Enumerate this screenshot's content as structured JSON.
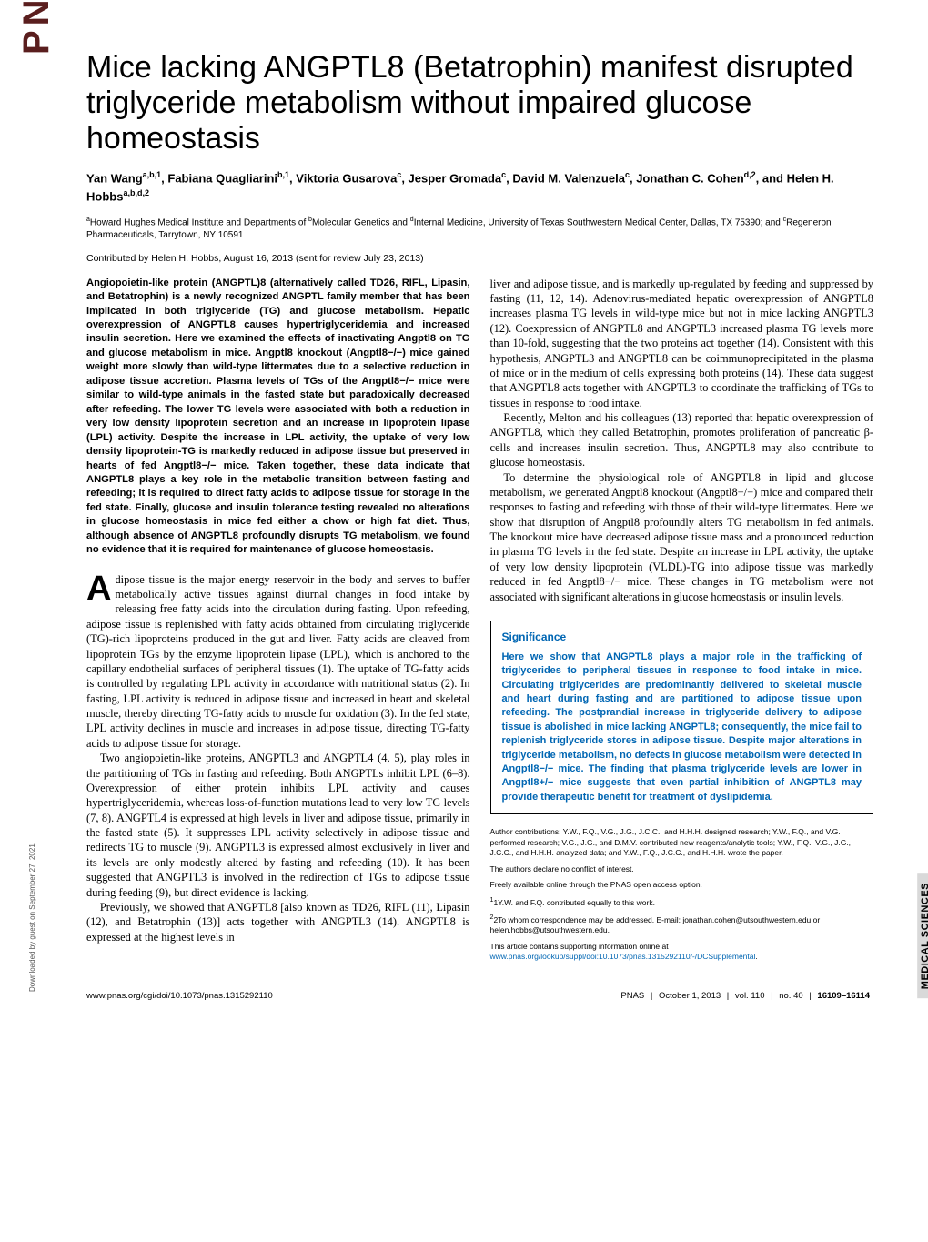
{
  "journal_logo": "PNAS  PNAS  PNAS",
  "side_label": "MEDICAL SCIENCES",
  "download_note": "Downloaded by guest on September 27, 2021",
  "title": "Mice lacking ANGPTL8 (Betatrophin) manifest disrupted triglyceride metabolism without impaired glucose homeostasis",
  "authors_html": "Yan Wang<sup>a,b,1</sup>, Fabiana Quagliarini<sup>b,1</sup>, Viktoria Gusarova<sup>c</sup>, Jesper Gromada<sup>c</sup>, David M. Valenzuela<sup>c</sup>, Jonathan C. Cohen<sup>d,2</sup>, and Helen H. Hobbs<sup>a,b,d,2</sup>",
  "affiliations_html": "<sup>a</sup>Howard Hughes Medical Institute and Departments of <sup>b</sup>Molecular Genetics and <sup>d</sup>Internal Medicine, University of Texas Southwestern Medical Center, Dallas, TX 75390; and <sup>c</sup>Regeneron Pharmaceuticals, Tarrytown, NY 10591",
  "contributed": "Contributed by Helen H. Hobbs, August 16, 2013 (sent for review July 23, 2013)",
  "abstract": "Angiopoietin-like protein (ANGPTL)8 (alternatively called TD26, RIFL, Lipasin, and Betatrophin) is a newly recognized ANGPTL family member that has been implicated in both triglyceride (TG) and glucose metabolism. Hepatic overexpression of ANGPTL8 causes hypertriglyceridemia and increased insulin secretion. Here we examined the effects of inactivating Angptl8 on TG and glucose metabolism in mice. Angptl8 knockout (Angptl8−/−) mice gained weight more slowly than wild-type littermates due to a selective reduction in adipose tissue accretion. Plasma levels of TGs of the Angptl8−/− mice were similar to wild-type animals in the fasted state but paradoxically decreased after refeeding. The lower TG levels were associated with both a reduction in very low density lipoprotein secretion and an increase in lipoprotein lipase (LPL) activity. Despite the increase in LPL activity, the uptake of very low density lipoprotein-TG is markedly reduced in adipose tissue but preserved in hearts of fed Angptl8−/− mice. Taken together, these data indicate that ANGPTL8 plays a key role in the metabolic transition between fasting and refeeding; it is required to direct fatty acids to adipose tissue for storage in the fed state. Finally, glucose and insulin tolerance testing revealed no alterations in glucose homeostasis in mice fed either a chow or high fat diet. Thus, although absence of ANGPTL8 profoundly disrupts TG metabolism, we found no evidence that it is required for maintenance of glucose homeostasis.",
  "body_left_p1": "dipose tissue is the major energy reservoir in the body and serves to buffer metabolically active tissues against diurnal changes in food intake by releasing free fatty acids into the circulation during fasting. Upon refeeding, adipose tissue is replenished with fatty acids obtained from circulating triglyceride (TG)-rich lipoproteins produced in the gut and liver. Fatty acids are cleaved from lipoprotein TGs by the enzyme lipoprotein lipase (LPL), which is anchored to the capillary endothelial surfaces of peripheral tissues (1). The uptake of TG-fatty acids is controlled by regulating LPL activity in accordance with nutritional status (2). In fasting, LPL activity is reduced in adipose tissue and increased in heart and skeletal muscle, thereby directing TG-fatty acids to muscle for oxidation (3). In the fed state, LPL activity declines in muscle and increases in adipose tissue, directing TG-fatty acids to adipose tissue for storage.",
  "body_left_p2": "Two angiopoietin-like proteins, ANGPTL3 and ANGPTL4 (4, 5), play roles in the partitioning of TGs in fasting and refeeding. Both ANGPTLs inhibit LPL (6–8). Overexpression of either protein inhibits LPL activity and causes hypertriglyceridemia, whereas loss-of-function mutations lead to very low TG levels (7, 8). ANGPTL4 is expressed at high levels in liver and adipose tissue, primarily in the fasted state (5). It suppresses LPL activity selectively in adipose tissue and redirects TG to muscle (9). ANGPTL3 is expressed almost exclusively in liver and its levels are only modestly altered by fasting and refeeding (10). It has been suggested that ANGPTL3 is involved in the redirection of TGs to adipose tissue during feeding (9), but direct evidence is lacking.",
  "body_left_p3": "Previously, we showed that ANGPTL8 [also known as TD26, RIFL (11), Lipasin (12), and Betatrophin (13)] acts together with ANGPTL3 (14). ANGPTL8 is expressed at the highest levels in",
  "body_right_p1": "liver and adipose tissue, and is markedly up-regulated by feeding and suppressed by fasting (11, 12, 14). Adenovirus-mediated hepatic overexpression of ANGPTL8 increases plasma TG levels in wild-type mice but not in mice lacking ANGPTL3 (12). Coexpression of ANGPTL8 and ANGPTL3 increased plasma TG levels more than 10-fold, suggesting that the two proteins act together (14). Consistent with this hypothesis, ANGPTL3 and ANGPTL8 can be coimmunoprecipitated in the plasma of mice or in the medium of cells expressing both proteins (14). These data suggest that ANGPTL8 acts together with ANGPTL3 to coordinate the trafficking of TGs to tissues in response to food intake.",
  "body_right_p2": "Recently, Melton and his colleagues (13) reported that hepatic overexpression of ANGPTL8, which they called Betatrophin, promotes proliferation of pancreatic β-cells and increases insulin secretion. Thus, ANGPTL8 may also contribute to glucose homeostasis.",
  "body_right_p3": "To determine the physiological role of ANGPTL8 in lipid and glucose metabolism, we generated Angptl8 knockout (Angptl8−/−) mice and compared their responses to fasting and refeeding with those of their wild-type littermates. Here we show that disruption of Angptl8 profoundly alters TG metabolism in fed animals. The knockout mice have decreased adipose tissue mass and a pronounced reduction in plasma TG levels in the fed state. Despite an increase in LPL activity, the uptake of very low density lipoprotein (VLDL)-TG into adipose tissue was markedly reduced in fed Angptl8−/− mice. These changes in TG metabolism were not associated with significant alterations in glucose homeostasis or insulin levels.",
  "significance": {
    "heading": "Significance",
    "body": "Here we show that ANGPTL8 plays a major role in the trafficking of triglycerides to peripheral tissues in response to food intake in mice. Circulating triglycerides are predominantly delivered to skeletal muscle and heart during fasting and are partitioned to adipose tissue upon refeeding. The postprandial increase in triglyceride delivery to adipose tissue is abolished in mice lacking ANGPTL8; consequently, the mice fail to replenish triglyceride stores in adipose tissue. Despite major alterations in triglyceride metabolism, no defects in glucose metabolism were detected in Angptl8−/− mice. The finding that plasma triglyceride levels are lower in Angptl8+/− mice suggests that even partial inhibition of ANGPTL8 may provide therapeutic benefit for treatment of dyslipidemia."
  },
  "meta": {
    "contributions": "Author contributions: Y.W., F.Q., V.G., J.G., J.C.C., and H.H.H. designed research; Y.W., F.Q., and V.G. performed research; V.G., J.G., and D.M.V. contributed new reagents/analytic tools; Y.W., F.Q., V.G., J.G., J.C.C., and H.H.H. analyzed data; and Y.W., F.Q., J.C.C., and H.H.H. wrote the paper.",
    "conflict": "The authors declare no conflict of interest.",
    "openaccess": "Freely available online through the PNAS open access option.",
    "equal": "1Y.W. and F.Q. contributed equally to this work.",
    "correspondence": "2To whom correspondence may be addressed. E-mail: jonathan.cohen@utsouthwestern.edu or helen.hobbs@utsouthwestern.edu.",
    "supporting_pre": "This article contains supporting information online at ",
    "supporting_link": "www.pnas.org/lookup/suppl/doi:10.1073/pnas.1315292110/-/DCSupplemental",
    "supporting_post": "."
  },
  "footer": {
    "doi": "www.pnas.org/cgi/doi/10.1073/pnas.1315292110",
    "journal": "PNAS",
    "date": "October 1, 2013",
    "vol": "vol. 110",
    "no": "no. 40",
    "pages": "16109–16114"
  },
  "colors": {
    "link": "#0066b3",
    "logo": "#6b2e2e",
    "sidebar_bg": "#d9d9d9"
  }
}
